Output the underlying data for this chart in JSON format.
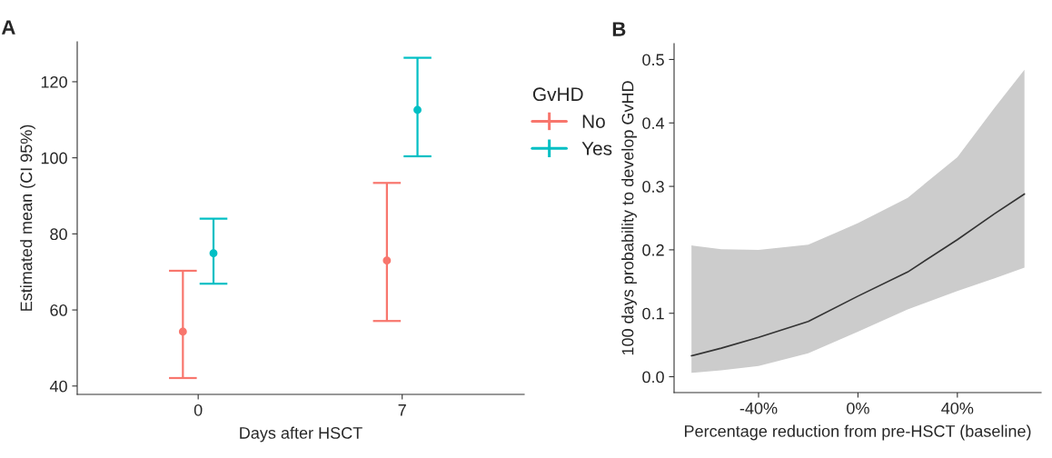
{
  "chart_data": [
    {
      "type": "scatter",
      "title": "A",
      "xlabel": "Days after HSCT",
      "ylabel": "Estimated mean (CI 95%)",
      "legend_title": "GvHD",
      "legend": "right",
      "marker": "circle",
      "grid": false,
      "categories": [
        "0",
        "7"
      ],
      "ylim": [
        37.8,
        130.5
      ],
      "yticks": [
        40,
        60,
        80,
        100,
        120
      ],
      "series": [
        {
          "name": "No",
          "color": "#f8766d",
          "values": [
            54.3,
            73.0
          ],
          "errors": [
            [
              42.1,
              70.3
            ],
            [
              57.1,
              93.4
            ]
          ]
        },
        {
          "name": "Yes",
          "color": "#00bfc4",
          "values": [
            74.9,
            112.6
          ],
          "errors": [
            [
              66.9,
              84.0
            ],
            [
              100.4,
              126.3
            ]
          ]
        }
      ]
    },
    {
      "type": "line",
      "title": "B",
      "xlabel": "Percentage reduction from pre-HSCT (baseline)",
      "ylabel": "100 days probability to develop GvHD",
      "grid": false,
      "xlim": [
        -74,
        73.7
      ],
      "xticks": [
        {
          "value": -40,
          "label": "-40%"
        },
        {
          "value": 0,
          "label": "0%"
        },
        {
          "value": 40,
          "label": "40%"
        }
      ],
      "ylim": [
        -0.025,
        0.525
      ],
      "yticks": [
        {
          "value": 0,
          "label": "0.0"
        },
        0.1,
        0.2,
        0.3,
        0.4,
        0.5
      ],
      "series": [
        {
          "color": "#333333",
          "x": [
            -67,
            -55,
            -40,
            -20,
            0,
            20,
            40,
            55,
            67
          ],
          "values": [
            0.033,
            0.045,
            0.062,
            0.087,
            0.127,
            0.165,
            0.216,
            0.257,
            0.288
          ],
          "lower": [
            0.006,
            0.01,
            0.017,
            0.037,
            0.071,
            0.106,
            0.135,
            0.155,
            0.172
          ],
          "upper": [
            0.207,
            0.201,
            0.2,
            0.208,
            0.242,
            0.282,
            0.346,
            0.424,
            0.484
          ]
        }
      ]
    }
  ]
}
